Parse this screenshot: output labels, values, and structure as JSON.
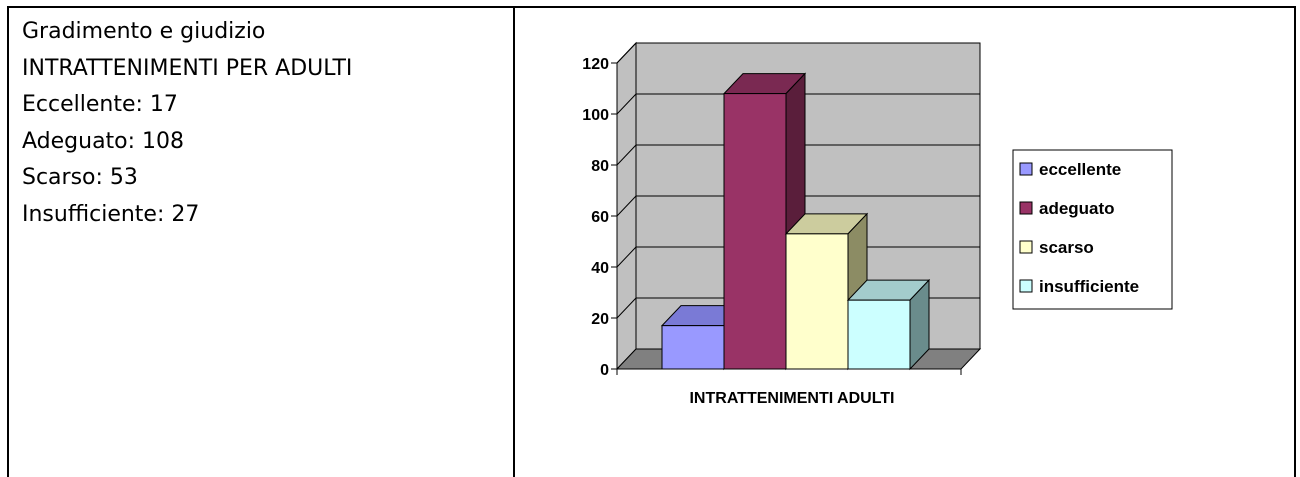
{
  "left_text": {
    "title": "Gradimento e giudizio",
    "subtitle": "INTRATTENIMENTI PER ADULTI",
    "lines": [
      "Eccellente: 17",
      "Adeguato: 108",
      "Scarso: 53",
      "Insufficiente: 27"
    ]
  },
  "chart_data": {
    "type": "bar",
    "style": "3d-clustered-column",
    "categories": [
      "INTRATTENIMENTI ADULTI"
    ],
    "series": [
      {
        "name": "eccellente",
        "values": [
          17
        ],
        "color": "#9999FF",
        "side": "#5F5FB0",
        "topc": "#7A7AD6"
      },
      {
        "name": "adeguato",
        "values": [
          108
        ],
        "color": "#993366",
        "side": "#5A1E3B",
        "topc": "#7A2952"
      },
      {
        "name": "scarso",
        "values": [
          53
        ],
        "color": "#FFFFCC",
        "side": "#8C8C64",
        "topc": "#CCCC9E"
      },
      {
        "name": "insufficiente",
        "values": [
          27
        ],
        "color": "#CCFFFF",
        "side": "#6A8C8C",
        "topc": "#A3CCCC"
      }
    ],
    "ylim": [
      0,
      120
    ],
    "yticks": [
      "0",
      "20",
      "40",
      "60",
      "80",
      "100",
      "120"
    ],
    "grid": true,
    "legend": "right",
    "wall_color": "#C0C0C0",
    "floor_color": "#808080"
  }
}
